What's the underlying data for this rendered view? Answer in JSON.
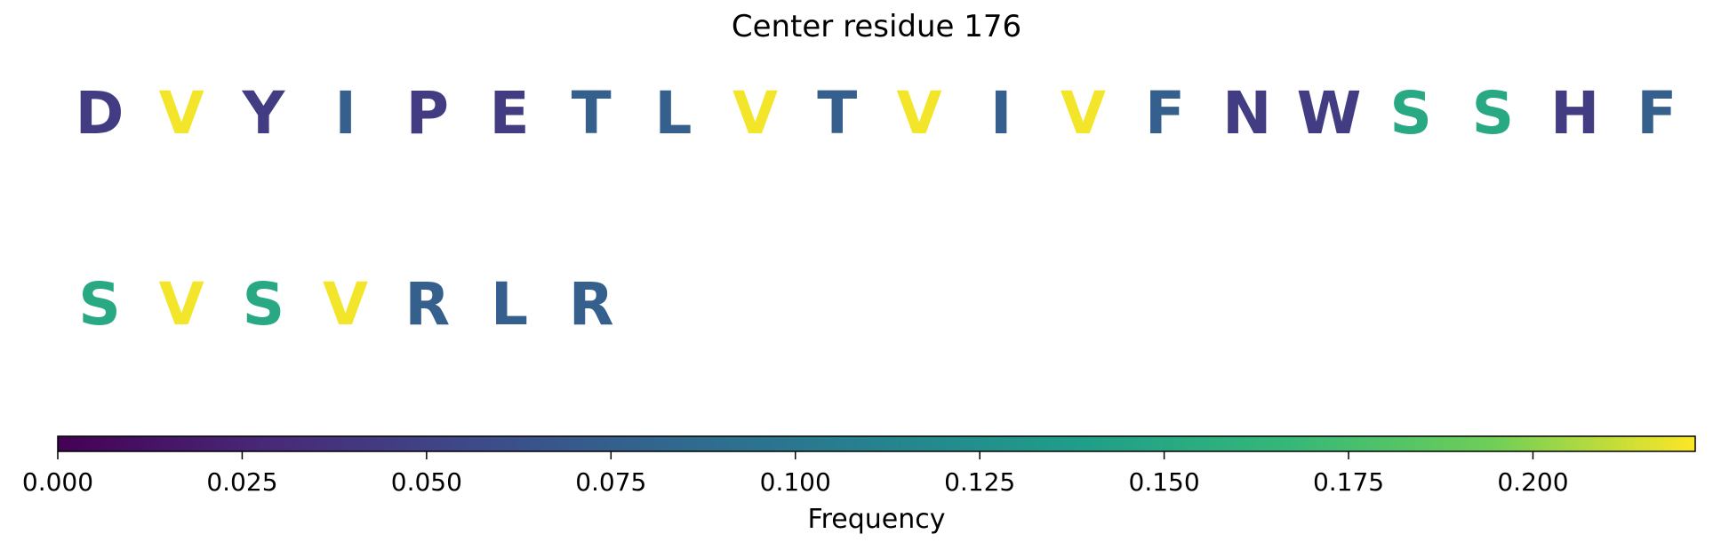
{
  "chart_data": {
    "type": "sequence-colormap",
    "title": "Center residue 176",
    "rows": [
      {
        "residues": [
          "D",
          "V",
          "Y",
          "I",
          "P",
          "E",
          "T",
          "L",
          "V",
          "T",
          "V",
          "I",
          "V",
          "F",
          "N",
          "W",
          "S",
          "S",
          "H",
          "F"
        ],
        "frequencies": [
          0.045,
          0.22,
          0.045,
          0.075,
          0.045,
          0.045,
          0.075,
          0.075,
          0.22,
          0.075,
          0.22,
          0.075,
          0.22,
          0.075,
          0.045,
          0.045,
          0.15,
          0.15,
          0.045,
          0.075
        ]
      },
      {
        "residues": [
          "S",
          "V",
          "S",
          "V",
          "R",
          "L",
          "R"
        ],
        "frequencies": [
          0.15,
          0.22,
          0.15,
          0.22,
          0.075,
          0.075,
          0.075
        ]
      }
    ],
    "colorbar": {
      "label": "Frequency",
      "colormap": "viridis",
      "range": [
        0,
        0.222
      ],
      "ticks": [
        0.0,
        0.025,
        0.05,
        0.075,
        0.1,
        0.125,
        0.15,
        0.175,
        0.2
      ],
      "tick_labels": [
        "0.000",
        "0.025",
        "0.050",
        "0.075",
        "0.100",
        "0.125",
        "0.150",
        "0.175",
        "0.200"
      ]
    }
  }
}
